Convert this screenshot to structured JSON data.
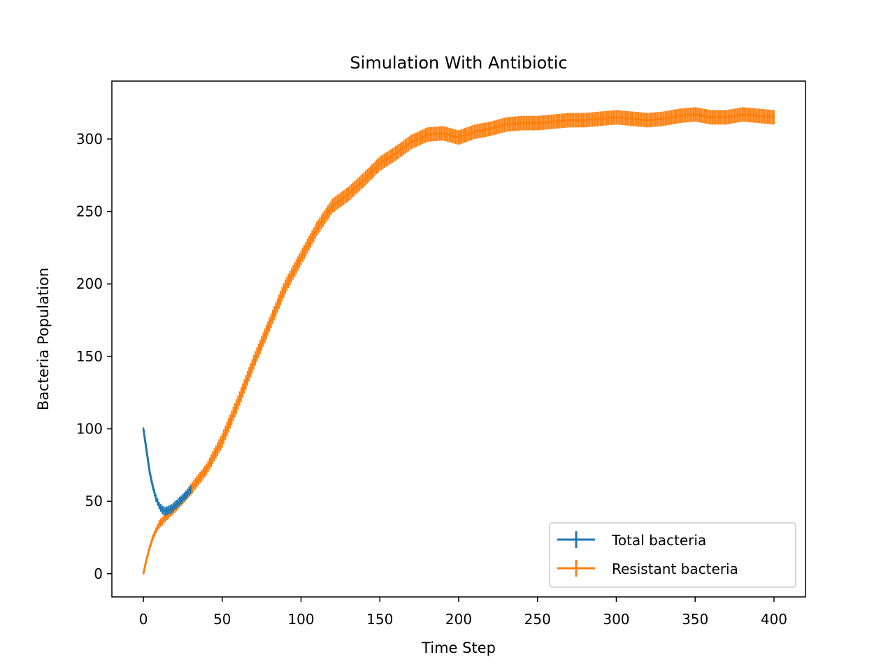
{
  "chart_data": {
    "type": "line",
    "title": "Simulation With Antibiotic",
    "xlabel": "Time Step",
    "ylabel": "Bacteria Population",
    "xlim": [
      -20,
      420
    ],
    "ylim": [
      -16,
      340
    ],
    "xticks": [
      0,
      50,
      100,
      150,
      200,
      250,
      300,
      350,
      400
    ],
    "yticks": [
      0,
      50,
      100,
      150,
      200,
      250,
      300
    ],
    "grid": false,
    "legend_position": "lower-right",
    "error_bars": true,
    "series": [
      {
        "name": "Total bacteria",
        "color": "#1f77b4",
        "x": [
          0,
          2,
          4,
          6,
          8,
          10,
          12,
          14,
          16,
          18,
          20,
          25,
          30
        ],
        "values": [
          100,
          85,
          70,
          60,
          52,
          47,
          44,
          43,
          44,
          45,
          47,
          52,
          58
        ],
        "error": [
          1,
          1.5,
          2,
          2,
          2.5,
          2.5,
          3,
          3,
          3,
          3,
          3,
          3,
          3
        ]
      },
      {
        "name": "Resistant bacteria",
        "color": "#ff7f0e",
        "x": [
          0,
          2,
          4,
          6,
          8,
          10,
          15,
          20,
          25,
          30,
          40,
          50,
          60,
          70,
          80,
          90,
          100,
          110,
          120,
          130,
          140,
          150,
          160,
          170,
          180,
          190,
          200,
          210,
          220,
          230,
          240,
          250,
          260,
          270,
          280,
          290,
          300,
          310,
          320,
          330,
          340,
          350,
          360,
          370,
          380,
          390,
          400
        ],
        "values": [
          0,
          10,
          18,
          25,
          30,
          34,
          40,
          45,
          51,
          58,
          72,
          92,
          118,
          146,
          172,
          198,
          218,
          238,
          254,
          262,
          272,
          283,
          290,
          298,
          303,
          304,
          301,
          305,
          307,
          310,
          311,
          311,
          312,
          313,
          313,
          314,
          315,
          314,
          313,
          314,
          316,
          317,
          315,
          315,
          317,
          316,
          315
        ],
        "error": [
          0.5,
          1,
          2,
          2,
          2,
          3,
          3,
          3,
          3,
          4,
          4,
          5,
          5,
          5,
          5,
          5,
          5,
          5,
          5,
          5,
          5,
          5,
          5,
          5,
          5,
          5,
          5,
          5,
          5,
          5,
          5,
          5,
          5,
          5,
          5,
          5,
          5,
          5,
          5,
          5,
          5,
          5,
          5,
          5,
          5,
          5,
          5
        ]
      }
    ]
  }
}
